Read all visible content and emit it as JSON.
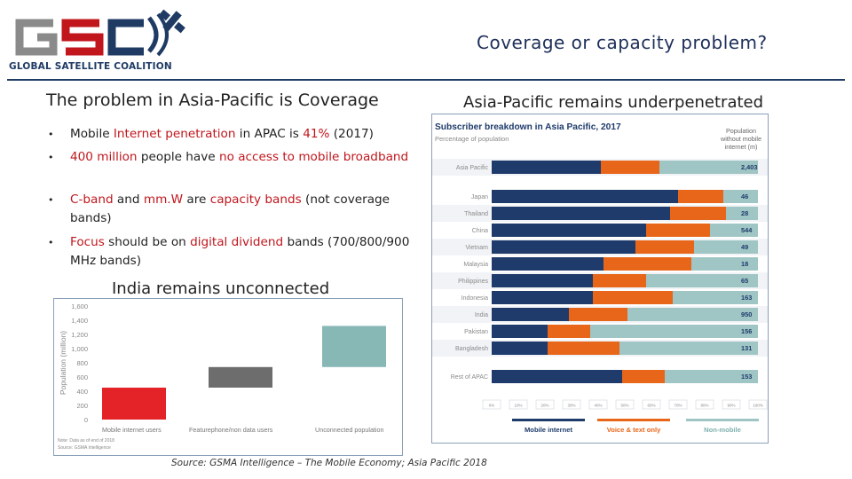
{
  "logo": {
    "acronym": "GSC",
    "tagline": "GLOBAL SATELLITE COALITION"
  },
  "title": "Coverage or capacity problem?",
  "left": {
    "heading": "The problem in Asia-Pacific is Coverage",
    "bullets": [
      {
        "parts": [
          {
            "t": "Mobile ",
            "r": false
          },
          {
            "t": "Internet penetration",
            "r": true
          },
          {
            "t": " in APAC is ",
            "r": false
          },
          {
            "t": "41%",
            "r": true
          },
          {
            "t": " (2017)",
            "r": false
          }
        ]
      },
      {
        "parts": [
          {
            "t": "400 million",
            "r": true
          },
          {
            "t": " people have ",
            "r": false
          },
          {
            "t": "no access to mobile broadband",
            "r": true
          }
        ]
      },
      {
        "parts": [
          {
            "t": "C-band",
            "r": true
          },
          {
            "t": " and ",
            "r": false
          },
          {
            "t": "mm.W",
            "r": true
          },
          {
            "t": " are ",
            "r": false
          },
          {
            "t": "capacity bands",
            "r": true
          },
          {
            "t": " (not coverage bands)",
            "r": false
          }
        ]
      },
      {
        "parts": [
          {
            "t": "Focus",
            "r": true
          },
          {
            "t": " should be on ",
            "r": false
          },
          {
            "t": "digital dividend",
            "r": true
          },
          {
            "t": " bands (700/800/900 MHz bands)",
            "r": false
          }
        ]
      }
    ]
  },
  "india_heading": "India remains unconnected",
  "right_heading": "Asia-Pacific remains underpenetrated",
  "source": "Source: GSMA Intelligence – The Mobile Economy; Asia Pacific 2018",
  "colors": {
    "navy": "#1f3b6b",
    "orange": "#e8661a",
    "teal": "#9fc6c4",
    "red": "#e42328",
    "grey": "#6d6d6d",
    "india_teal": "#88b8b6"
  },
  "india_chart": {
    "type": "bar",
    "ylabel": "Population (million)",
    "yticks": [
      "0",
      "200",
      "400",
      "600",
      "800",
      "1,000",
      "1,200",
      "1,400",
      "1,600"
    ],
    "ylim": [
      0,
      1600
    ],
    "categories": [
      "Mobile internet users",
      "Featurephone/non data users",
      "Unconnected population"
    ],
    "bars": [
      {
        "base": 0,
        "value": 450
      },
      {
        "base": 450,
        "value": 290
      },
      {
        "base": 740,
        "value": 580
      }
    ],
    "note1": "Note: Data as of end of 2018",
    "note2": "Source: GSMA Intelligence"
  },
  "apac_chart": {
    "type": "bar",
    "title": "Subscriber breakdown in Asia Pacific, 2017",
    "subtitle": "Percentage of population",
    "value_header": "Population without mobile internet (m)",
    "series": [
      {
        "name": "Mobile internet"
      },
      {
        "name": "Voice & text only"
      },
      {
        "name": "Non-mobile"
      }
    ],
    "rows": [
      {
        "label": "Asia Pacific",
        "mi": 41,
        "vt": 22,
        "nm": 37,
        "value": "2,403"
      },
      {
        "label": "Japan",
        "mi": 70,
        "vt": 17,
        "nm": 13,
        "value": "46"
      },
      {
        "label": "Thailand",
        "mi": 67,
        "vt": 21,
        "nm": 12,
        "value": "28"
      },
      {
        "label": "China",
        "mi": 58,
        "vt": 24,
        "nm": 18,
        "value": "544"
      },
      {
        "label": "Vietnam",
        "mi": 54,
        "vt": 22,
        "nm": 24,
        "value": "49"
      },
      {
        "label": "Malaysia",
        "mi": 42,
        "vt": 33,
        "nm": 25,
        "value": "18"
      },
      {
        "label": "Philippines",
        "mi": 38,
        "vt": 20,
        "nm": 42,
        "value": "65"
      },
      {
        "label": "Indonesia",
        "mi": 38,
        "vt": 30,
        "nm": 32,
        "value": "163"
      },
      {
        "label": "India",
        "mi": 29,
        "vt": 22,
        "nm": 49,
        "value": "950"
      },
      {
        "label": "Pakistan",
        "mi": 21,
        "vt": 16,
        "nm": 63,
        "value": "156"
      },
      {
        "label": "Bangladesh",
        "mi": 21,
        "vt": 27,
        "nm": 52,
        "value": "131"
      },
      {
        "label": "Rest of APAC",
        "mi": 49,
        "vt": 16,
        "nm": 35,
        "value": "153"
      }
    ],
    "xticks": [
      "0%",
      "10%",
      "20%",
      "30%",
      "40%",
      "50%",
      "60%",
      "70%",
      "80%",
      "90%",
      "100%"
    ]
  }
}
